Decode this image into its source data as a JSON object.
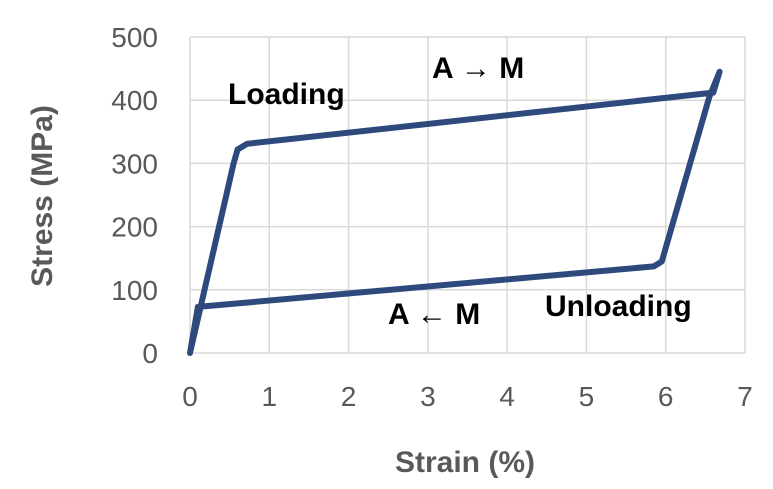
{
  "chart_data": {
    "type": "line",
    "title": "",
    "xlabel": "Strain (%)",
    "ylabel": "Stress (MPa)",
    "xlim": [
      0,
      7
    ],
    "ylim": [
      0,
      500
    ],
    "grid": true,
    "legend": "none",
    "x_ticks": [
      "0",
      "1",
      "2",
      "3",
      "4",
      "5",
      "6",
      "7"
    ],
    "y_ticks": [
      "0",
      "100",
      "200",
      "300",
      "400",
      "500"
    ],
    "series": [
      {
        "color": "#2E4A7D",
        "points": [
          [
            0.0,
            0
          ],
          [
            0.55,
            300
          ],
          [
            0.6,
            322
          ],
          [
            0.72,
            331
          ],
          [
            6.6,
            412
          ],
          [
            6.68,
            445
          ],
          [
            6.55,
            405
          ],
          [
            5.95,
            145
          ],
          [
            5.85,
            137
          ],
          [
            0.1,
            73
          ],
          [
            0.0,
            0
          ]
        ]
      }
    ],
    "annotations": {
      "loading": "Loading",
      "unloading": "Unloading",
      "forward": "A → M",
      "reverse": "A ← M"
    },
    "colors": {
      "line": "#2E4A7D",
      "grid": "#D9D9D9",
      "tick_text": "#595959"
    }
  }
}
